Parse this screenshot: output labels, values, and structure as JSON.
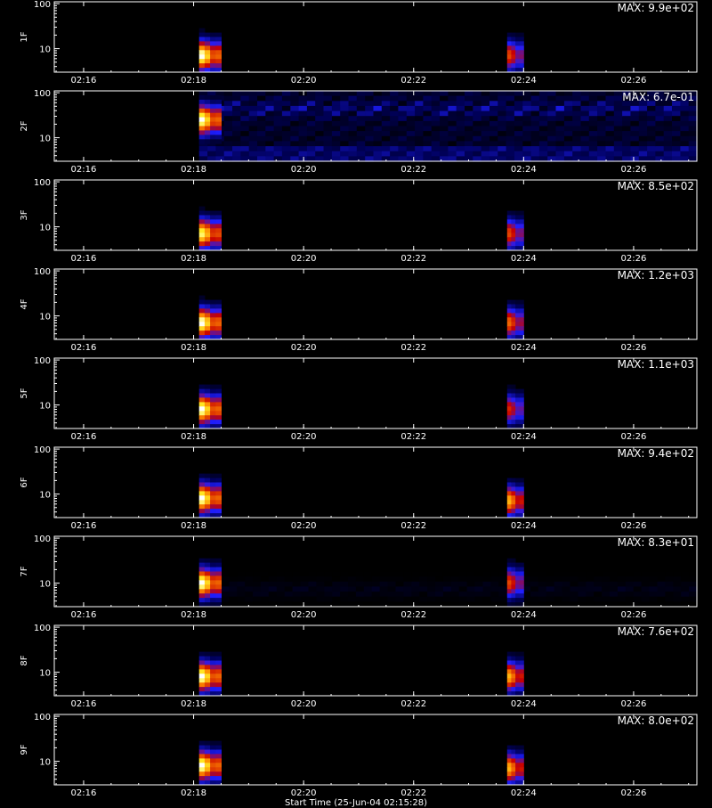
{
  "chart_data": [
    {
      "type": "heatmap",
      "ylabel": "1F",
      "ylim": [
        3,
        110
      ],
      "yscale": "log",
      "yticks": [
        "10",
        "100"
      ],
      "xlim": [
        "02:15:28",
        "02:27:09"
      ],
      "xticks": [
        "02:16",
        "02:18",
        "02:20",
        "02:22",
        "02:24",
        "02:26"
      ],
      "max_label": "MAX: 9.9e+02",
      "bursts": [
        {
          "start": "02:18:06",
          "end": "02:18:30",
          "peak": 1.0,
          "center_y": 7
        },
        {
          "start": "02:23:42",
          "end": "02:24:00",
          "peak": 0.7,
          "center_y": 7
        }
      ],
      "background": 0.0
    },
    {
      "type": "heatmap",
      "ylabel": "2F",
      "ylim": [
        3,
        110
      ],
      "yscale": "log",
      "yticks": [
        "10",
        "100"
      ],
      "xlim": [
        "02:15:28",
        "02:27:09"
      ],
      "xticks": [
        "02:16",
        "02:18",
        "02:20",
        "02:22",
        "02:24",
        "02:26"
      ],
      "max_label": "MAX: 6.7e-01",
      "bursts": [
        {
          "start": "02:18:06",
          "end": "02:18:30",
          "peak": 1.0,
          "center_y": 25
        }
      ],
      "background": 0.35,
      "background_start": "02:18:06"
    },
    {
      "type": "heatmap",
      "ylabel": "3F",
      "ylim": [
        3,
        110
      ],
      "yscale": "log",
      "yticks": [
        "10",
        "100"
      ],
      "xlim": [
        "02:15:28",
        "02:27:09"
      ],
      "xticks": [
        "02:16",
        "02:18",
        "02:20",
        "02:22",
        "02:24",
        "02:26"
      ],
      "max_label": "MAX: 8.5e+02",
      "bursts": [
        {
          "start": "02:18:06",
          "end": "02:18:30",
          "peak": 0.95,
          "center_y": 7
        },
        {
          "start": "02:23:42",
          "end": "02:24:00",
          "peak": 0.7,
          "center_y": 7
        }
      ],
      "background": 0.0
    },
    {
      "type": "heatmap",
      "ylabel": "4F",
      "ylim": [
        3,
        110
      ],
      "yscale": "log",
      "yticks": [
        "10",
        "100"
      ],
      "xlim": [
        "02:15:28",
        "02:27:09"
      ],
      "xticks": [
        "02:16",
        "02:18",
        "02:20",
        "02:22",
        "02:24",
        "02:26"
      ],
      "max_label": "MAX: 1.2e+03",
      "bursts": [
        {
          "start": "02:18:06",
          "end": "02:18:30",
          "peak": 1.0,
          "center_y": 7
        },
        {
          "start": "02:23:42",
          "end": "02:24:00",
          "peak": 0.75,
          "center_y": 7
        }
      ],
      "background": 0.0
    },
    {
      "type": "heatmap",
      "ylabel": "5F",
      "ylim": [
        3,
        110
      ],
      "yscale": "log",
      "yticks": [
        "10",
        "100"
      ],
      "xlim": [
        "02:15:28",
        "02:27:09"
      ],
      "xticks": [
        "02:16",
        "02:18",
        "02:20",
        "02:22",
        "02:24",
        "02:26"
      ],
      "max_label": "MAX: 1.1e+03",
      "bursts": [
        {
          "start": "02:18:06",
          "end": "02:18:30",
          "peak": 1.0,
          "center_y": 8
        },
        {
          "start": "02:23:42",
          "end": "02:24:00",
          "peak": 0.65,
          "center_y": 8
        }
      ],
      "background": 0.0
    },
    {
      "type": "heatmap",
      "ylabel": "6F",
      "ylim": [
        3,
        110
      ],
      "yscale": "log",
      "yticks": [
        "10",
        "100"
      ],
      "xlim": [
        "02:15:28",
        "02:27:09"
      ],
      "xticks": [
        "02:16",
        "02:18",
        "02:20",
        "02:22",
        "02:24",
        "02:26"
      ],
      "max_label": "MAX: 9.4e+02",
      "bursts": [
        {
          "start": "02:18:06",
          "end": "02:18:30",
          "peak": 1.0,
          "center_y": 8
        },
        {
          "start": "02:23:42",
          "end": "02:24:00",
          "peak": 0.85,
          "center_y": 7
        }
      ],
      "background": 0.0
    },
    {
      "type": "heatmap",
      "ylabel": "7F",
      "ylim": [
        3,
        110
      ],
      "yscale": "log",
      "yticks": [
        "10",
        "100"
      ],
      "xlim": [
        "02:15:28",
        "02:27:09"
      ],
      "xticks": [
        "02:16",
        "02:18",
        "02:20",
        "02:22",
        "02:24",
        "02:26"
      ],
      "max_label": "MAX: 8.3e+01",
      "bursts": [
        {
          "start": "02:18:06",
          "end": "02:18:30",
          "peak": 1.0,
          "center_y": 10
        },
        {
          "start": "02:23:42",
          "end": "02:24:00",
          "peak": 0.7,
          "center_y": 10
        }
      ],
      "background": 0.1,
      "background_start": "02:18:30"
    },
    {
      "type": "heatmap",
      "ylabel": "8F",
      "ylim": [
        3,
        110
      ],
      "yscale": "log",
      "yticks": [
        "10",
        "100"
      ],
      "xlim": [
        "02:15:28",
        "02:27:09"
      ],
      "xticks": [
        "02:16",
        "02:18",
        "02:20",
        "02:22",
        "02:24",
        "02:26"
      ],
      "max_label": "MAX: 7.6e+02",
      "bursts": [
        {
          "start": "02:18:06",
          "end": "02:18:30",
          "peak": 1.0,
          "center_y": 8
        },
        {
          "start": "02:23:42",
          "end": "02:24:00",
          "peak": 0.85,
          "center_y": 8
        }
      ],
      "background": 0.0
    },
    {
      "type": "heatmap",
      "ylabel": "9F",
      "ylim": [
        3,
        110
      ],
      "yscale": "log",
      "yticks": [
        "10",
        "100"
      ],
      "xlim": [
        "02:15:28",
        "02:27:09"
      ],
      "xticks": [
        "02:16",
        "02:18",
        "02:20",
        "02:22",
        "02:24",
        "02:26"
      ],
      "max_label": "MAX: 8.0e+02",
      "bursts": [
        {
          "start": "02:18:06",
          "end": "02:18:30",
          "peak": 1.0,
          "center_y": 8
        },
        {
          "start": "02:23:42",
          "end": "02:24:00",
          "peak": 0.85,
          "center_y": 7
        }
      ],
      "background": 0.0
    }
  ],
  "x_caption": "Start Time (25-Jun-04 02:15:28)",
  "colors": {
    "axis": "#ffffff",
    "background": "#000000"
  }
}
